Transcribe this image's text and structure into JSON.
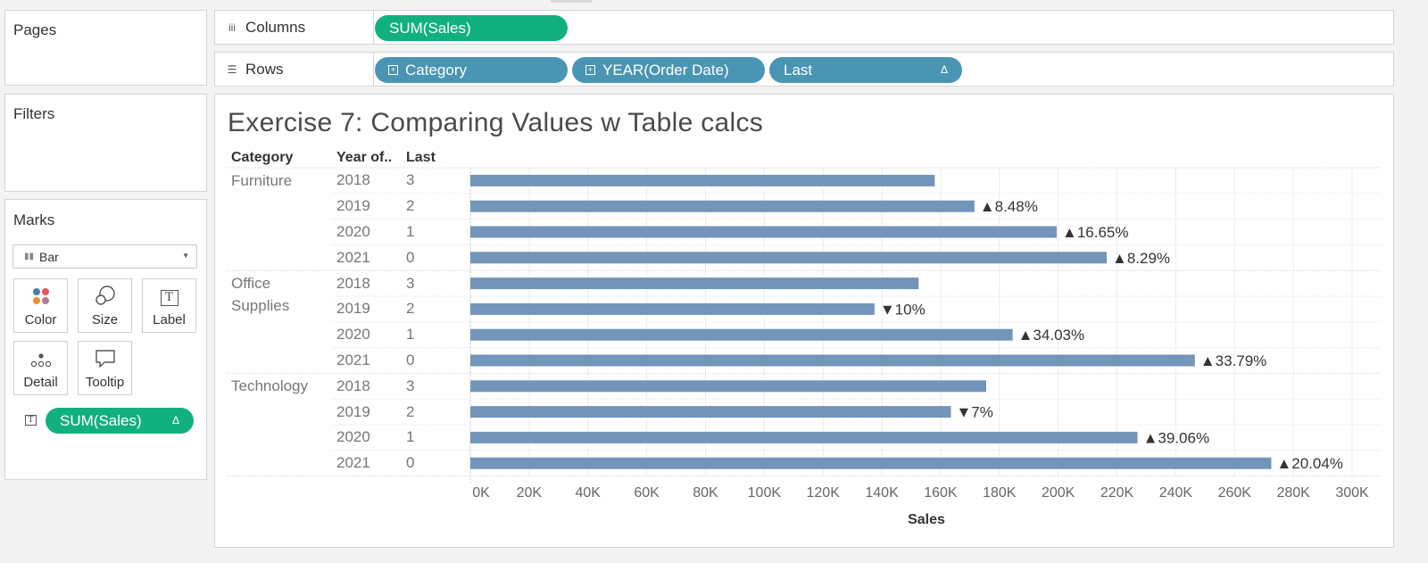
{
  "pages_panel": {
    "title": "Pages"
  },
  "filters_panel": {
    "title": "Filters"
  },
  "marks_panel": {
    "title": "Marks",
    "mark_type": "Bar",
    "buttons": [
      {
        "label": "Color",
        "icon": "color-dots-icon"
      },
      {
        "label": "Size",
        "icon": "size-circles-icon"
      },
      {
        "label": "Label",
        "icon": "label-t-icon"
      },
      {
        "label": "Detail",
        "icon": "detail-dots-icon"
      },
      {
        "label": "Tooltip",
        "icon": "tooltip-bubble-icon"
      }
    ],
    "field_pill": {
      "label": "SUM(Sales)",
      "delta": "Δ"
    }
  },
  "columns_shelf": {
    "label": "Columns",
    "pills": [
      {
        "label": "SUM(Sales)"
      }
    ]
  },
  "rows_shelf": {
    "label": "Rows",
    "pills": [
      {
        "label": "Category",
        "expand": "⊞"
      },
      {
        "label": "YEAR(Order Date)",
        "expand": "⊞"
      },
      {
        "label": "Last",
        "delta": "Δ"
      }
    ]
  },
  "view": {
    "title": "Exercise 7: Comparing Values w Table calcs",
    "headers": {
      "category": "Category",
      "year": "Year of..",
      "last": "Last"
    }
  },
  "colors": {
    "bar": "#7295b9",
    "green_pill": "#13b07f",
    "blue_pill": "#4a95b3"
  },
  "chart_data": {
    "type": "bar",
    "orientation": "horizontal",
    "xlabel": "Sales",
    "xlim": [
      0,
      300000
    ],
    "x_ticks": [
      "0K",
      "20K",
      "40K",
      "60K",
      "80K",
      "100K",
      "120K",
      "140K",
      "160K",
      "180K",
      "200K",
      "220K",
      "240K",
      "260K",
      "280K",
      "300K"
    ],
    "grid": true,
    "groups": [
      {
        "category": "Furniture",
        "rows": [
          {
            "year": "2018",
            "last": "3",
            "value": 158000,
            "label": ""
          },
          {
            "year": "2019",
            "last": "2",
            "value": 171500,
            "label": "▲8.48%"
          },
          {
            "year": "2020",
            "last": "1",
            "value": 199500,
            "label": "▲16.65%"
          },
          {
            "year": "2021",
            "last": "0",
            "value": 216500,
            "label": "▲8.29%"
          }
        ]
      },
      {
        "category": "Office Supplies",
        "rows": [
          {
            "year": "2018",
            "last": "3",
            "value": 152500,
            "label": ""
          },
          {
            "year": "2019",
            "last": "2",
            "value": 137500,
            "label": "▼10%"
          },
          {
            "year": "2020",
            "last": "1",
            "value": 184500,
            "label": "▲34.03%"
          },
          {
            "year": "2021",
            "last": "0",
            "value": 246500,
            "label": "▲33.79%"
          }
        ]
      },
      {
        "category": "Technology",
        "rows": [
          {
            "year": "2018",
            "last": "3",
            "value": 175500,
            "label": ""
          },
          {
            "year": "2019",
            "last": "2",
            "value": 163500,
            "label": "▼7%"
          },
          {
            "year": "2020",
            "last": "1",
            "value": 227000,
            "label": "▲39.06%"
          },
          {
            "year": "2021",
            "last": "0",
            "value": 272500,
            "label": "▲20.04%"
          }
        ]
      }
    ]
  }
}
